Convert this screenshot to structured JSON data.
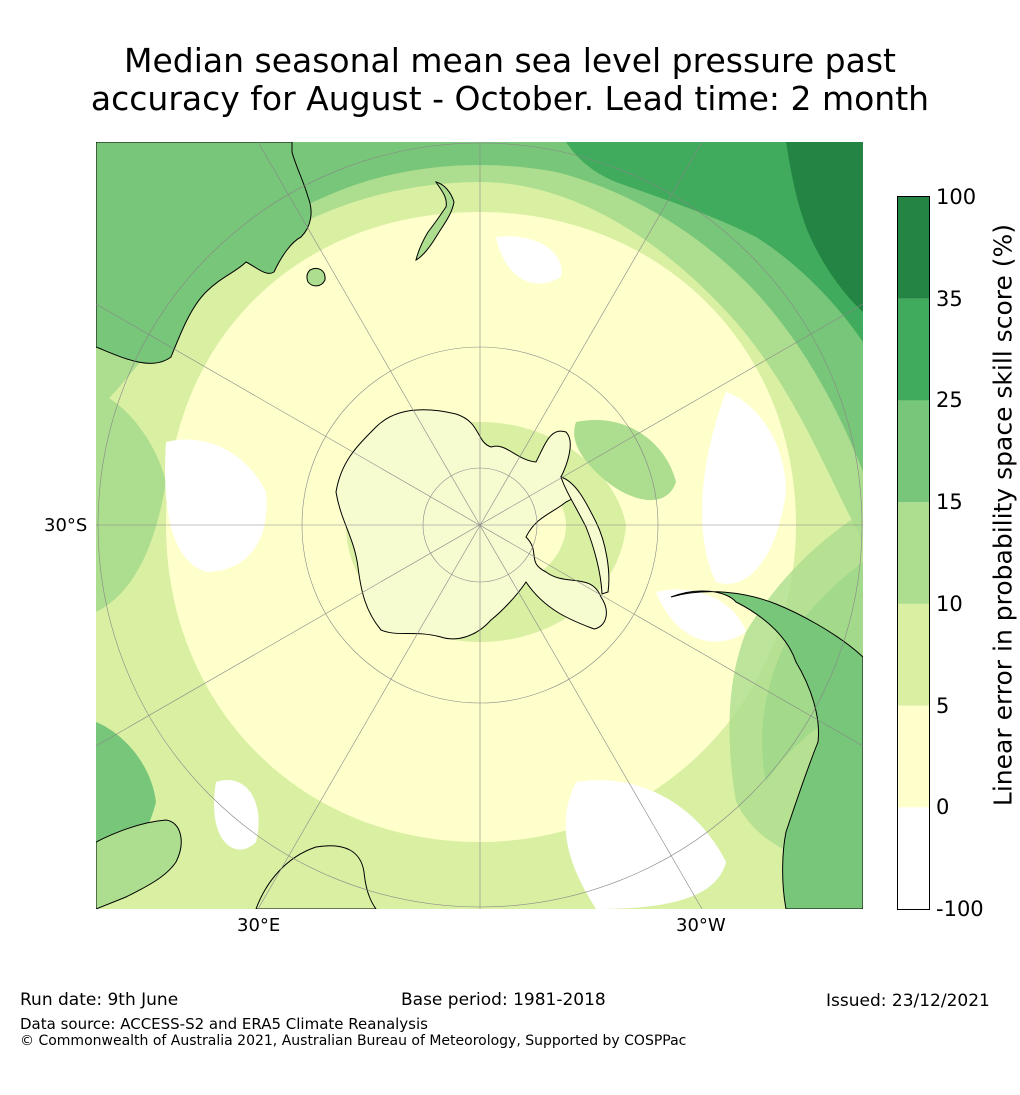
{
  "title": {
    "line1": "Median seasonal mean sea level pressure past",
    "line2": "accuracy for August - October. Lead time: 2 month"
  },
  "map": {
    "projection": "south polar stereographic",
    "labels": {
      "lat_left": "30°S",
      "lon_bottom_left": "30°E",
      "lon_bottom_right": "30°W"
    },
    "colors": {
      "c_neg": "#ffffff",
      "c0": "#ffffcc",
      "c5": "#d9f0a3",
      "c10": "#addd8e",
      "c15": "#78c679",
      "c25": "#41ab5d",
      "c35": "#238443"
    }
  },
  "colorbar": {
    "label": "Linear error in probability space skill score (%)",
    "ticks": [
      "100",
      "35",
      "25",
      "15",
      "10",
      "5",
      "0",
      "-100"
    ],
    "bins": [
      {
        "from": "-100",
        "to": "0",
        "color": "#ffffff"
      },
      {
        "from": "0",
        "to": "5",
        "color": "#ffffcc"
      },
      {
        "from": "5",
        "to": "10",
        "color": "#d9f0a3"
      },
      {
        "from": "10",
        "to": "15",
        "color": "#addd8e"
      },
      {
        "from": "15",
        "to": "25",
        "color": "#78c679"
      },
      {
        "from": "25",
        "to": "35",
        "color": "#41ab5d"
      },
      {
        "from": "35",
        "to": "100",
        "color": "#238443"
      }
    ]
  },
  "footer": {
    "run_date": "Run date: 9th June",
    "base_period": "Base period: 1981-2018",
    "issued": "Issued: 23/12/2021",
    "data_source": "Data source: ACCESS-S2 and ERA5 Climate Reanalysis",
    "copyright": "© Commonwealth of Australia 2021, Australian Bureau of Meteorology, Supported by COSPPac"
  }
}
